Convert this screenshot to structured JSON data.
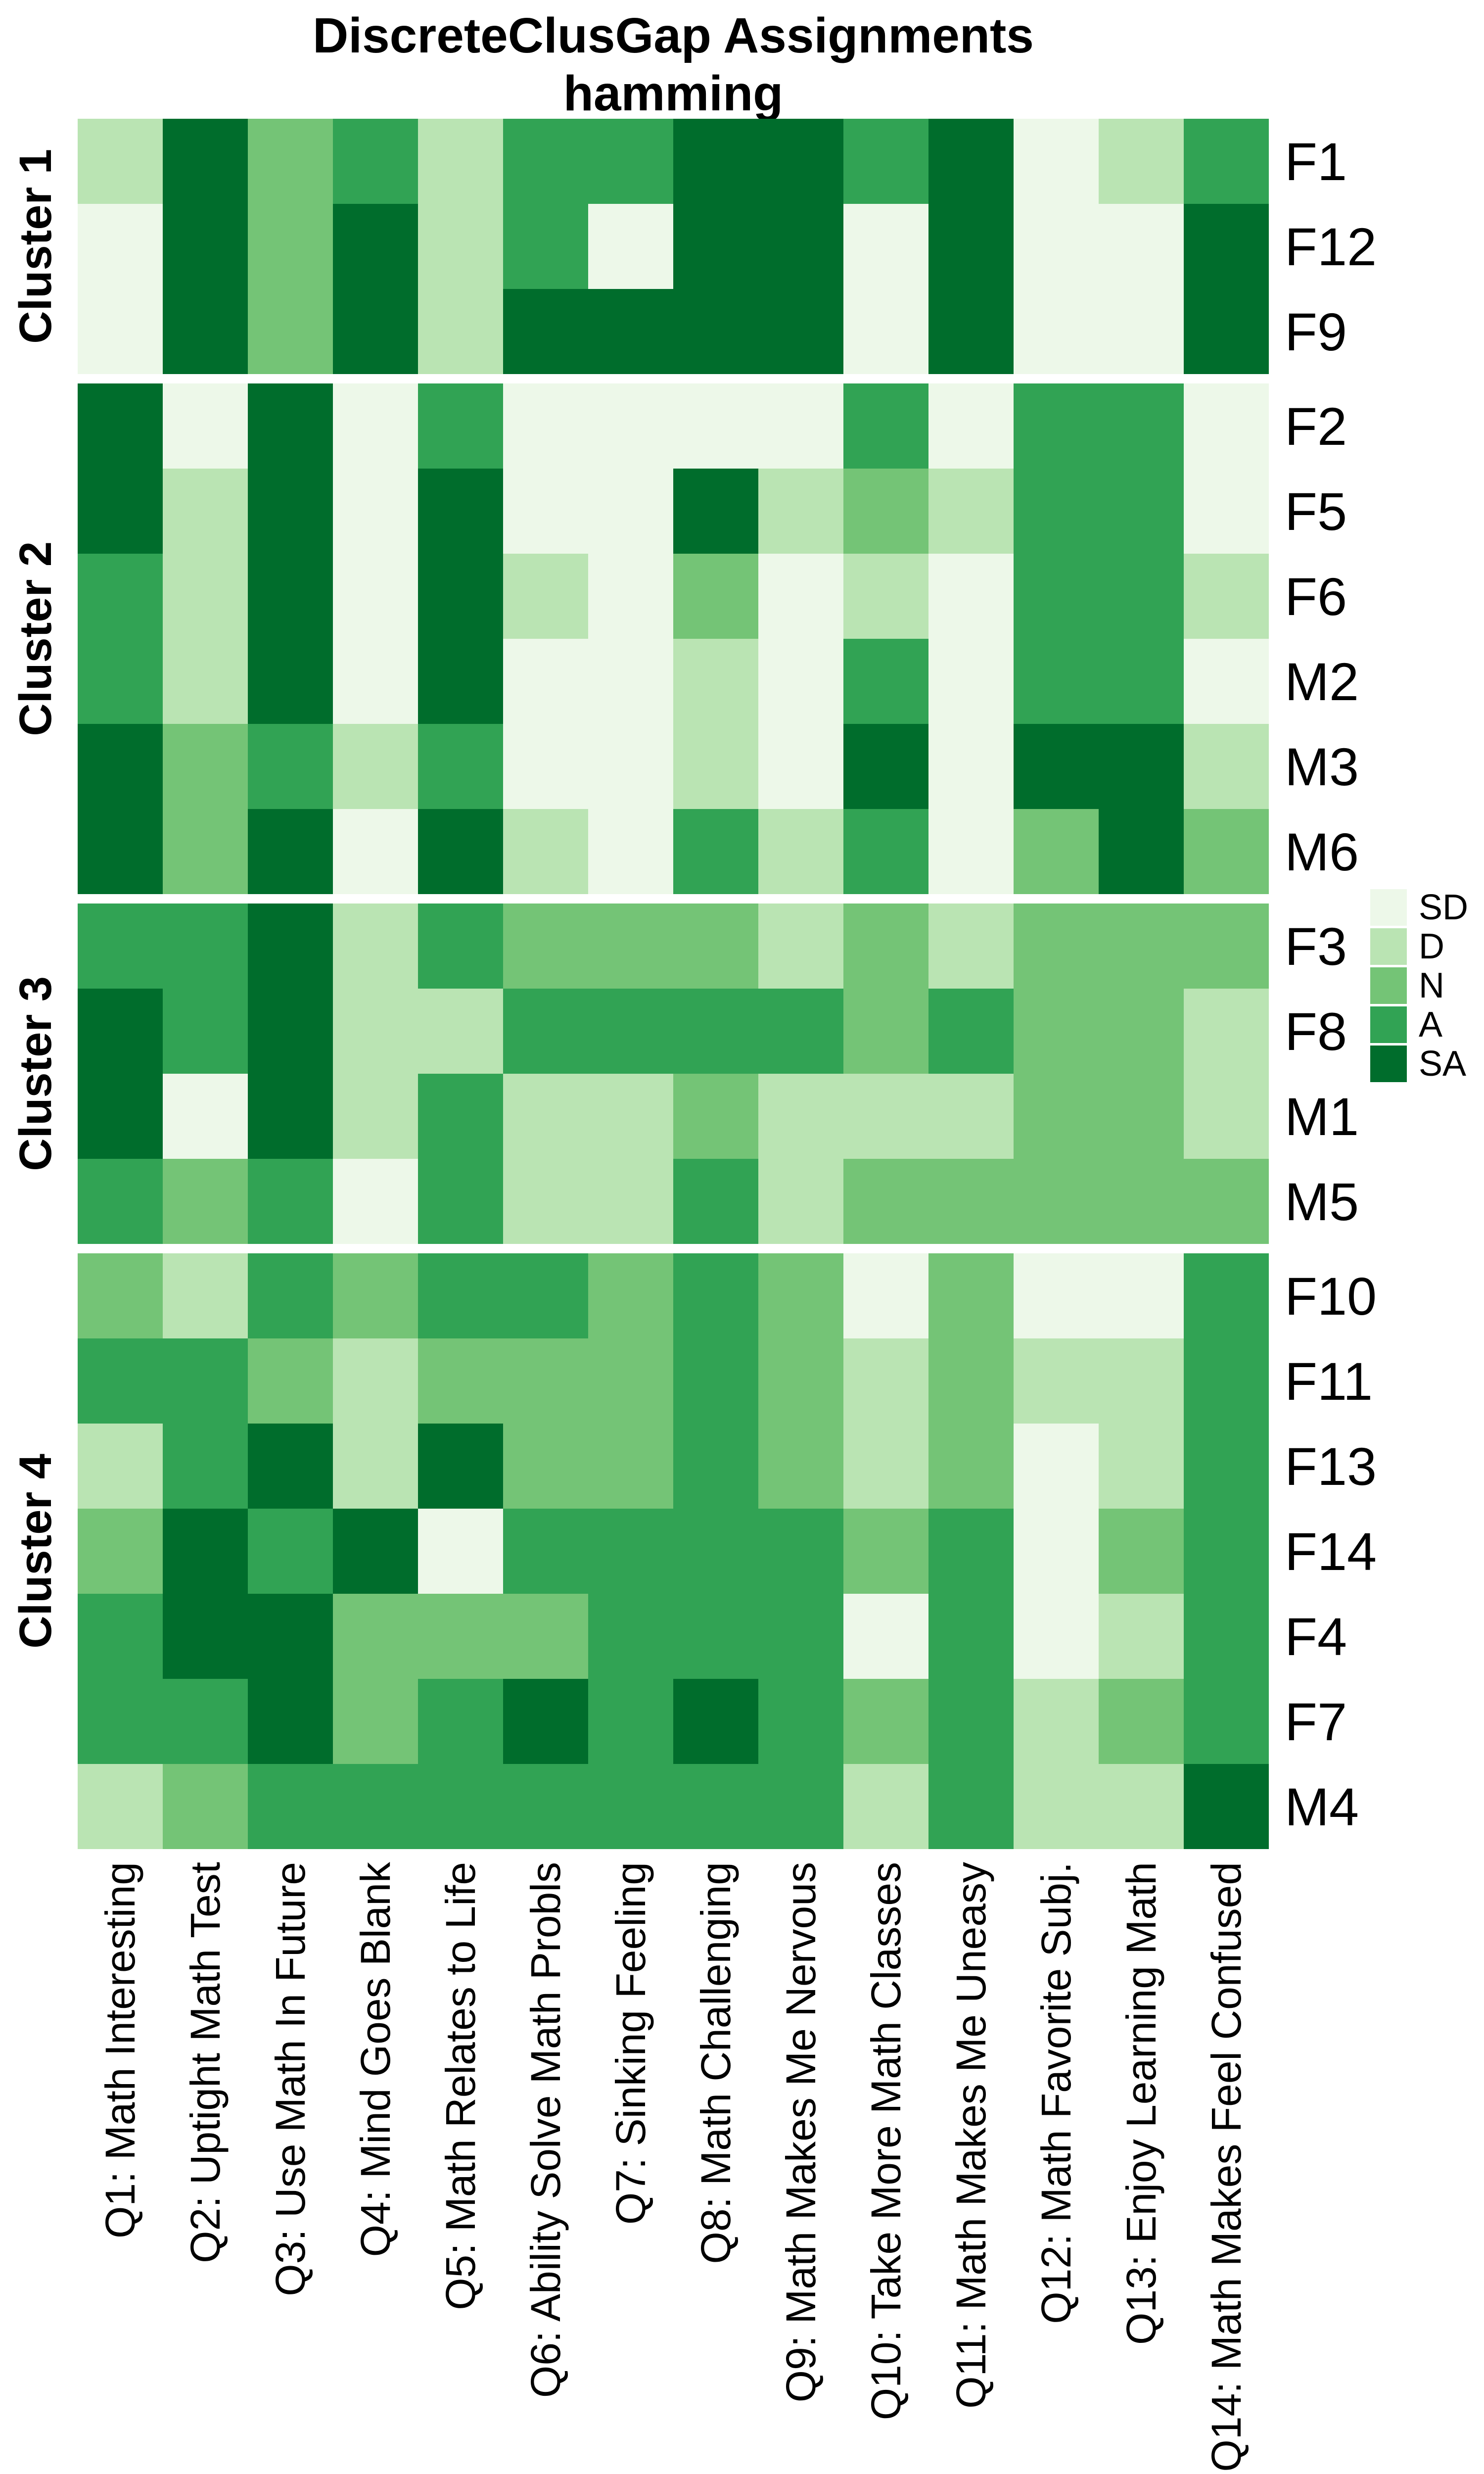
{
  "title": {
    "line1": "DiscreteClusGap Assignments",
    "line2": "hamming"
  },
  "legend": {
    "items": [
      {
        "label": "SD",
        "color": "#EDF8E9"
      },
      {
        "label": "D",
        "color": "#BAE4B3"
      },
      {
        "label": "N",
        "color": "#74C476"
      },
      {
        "label": "A",
        "color": "#31A354"
      },
      {
        "label": "SA",
        "color": "#006D2C"
      }
    ]
  },
  "chart_data": {
    "type": "heatmap",
    "title": "DiscreteClusGap Assignments",
    "subtitle": "hamming",
    "value_scale": [
      "SD",
      "D",
      "N",
      "A",
      "SA"
    ],
    "palette": {
      "SD": "#EDF8E9",
      "D": "#BAE4B3",
      "N": "#74C476",
      "A": "#31A354",
      "SA": "#006D2C"
    },
    "x_labels": [
      "Q1: Math Interesting",
      "Q2: Uptight Math Test",
      "Q3: Use Math In Future",
      "Q4: Mind Goes Blank",
      "Q5: Math Relates to Life",
      "Q6: Ability Solve Math Probls",
      "Q7: Sinking Feeling",
      "Q8: Math Challenging",
      "Q9: Math Makes Me Nervous",
      "Q10: Take More Math Classes",
      "Q11: Math Makes Me Uneasy",
      "Q12: Math Favorite Subj.",
      "Q13: Enjoy Learning Math",
      "Q14: Math Makes Feel Confused"
    ],
    "legend_position": "right",
    "clusters": [
      {
        "label": "Cluster 1",
        "rows": [
          {
            "id": "F1",
            "values": [
              "D",
              "SA",
              "N",
              "A",
              "D",
              "A",
              "A",
              "SA",
              "SA",
              "A",
              "SA",
              "SD",
              "D",
              "A"
            ]
          },
          {
            "id": "F12",
            "values": [
              "SD",
              "SA",
              "N",
              "SA",
              "D",
              "A",
              "SD",
              "SA",
              "SA",
              "SD",
              "SA",
              "SD",
              "SD",
              "SA"
            ]
          },
          {
            "id": "F9",
            "values": [
              "SD",
              "SA",
              "N",
              "SA",
              "D",
              "SA",
              "SA",
              "SA",
              "SA",
              "SD",
              "SA",
              "SD",
              "SD",
              "SA"
            ]
          }
        ]
      },
      {
        "label": "Cluster 2",
        "rows": [
          {
            "id": "F2",
            "values": [
              "SA",
              "SD",
              "SA",
              "SD",
              "A",
              "SD",
              "SD",
              "SD",
              "SD",
              "A",
              "SD",
              "A",
              "A",
              "SD"
            ]
          },
          {
            "id": "F5",
            "values": [
              "SA",
              "D",
              "SA",
              "SD",
              "SA",
              "SD",
              "SD",
              "SA",
              "D",
              "N",
              "D",
              "A",
              "A",
              "SD"
            ]
          },
          {
            "id": "F6",
            "values": [
              "A",
              "D",
              "SA",
              "SD",
              "SA",
              "D",
              "SD",
              "N",
              "SD",
              "D",
              "SD",
              "A",
              "A",
              "D"
            ]
          },
          {
            "id": "M2",
            "values": [
              "A",
              "D",
              "SA",
              "SD",
              "SA",
              "SD",
              "SD",
              "D",
              "SD",
              "A",
              "SD",
              "A",
              "A",
              "SD"
            ]
          },
          {
            "id": "M3",
            "values": [
              "SA",
              "N",
              "A",
              "D",
              "A",
              "SD",
              "SD",
              "D",
              "SD",
              "SA",
              "SD",
              "SA",
              "SA",
              "D"
            ]
          },
          {
            "id": "M6",
            "values": [
              "SA",
              "N",
              "SA",
              "SD",
              "SA",
              "D",
              "SD",
              "A",
              "D",
              "A",
              "SD",
              "N",
              "SA",
              "N"
            ]
          }
        ]
      },
      {
        "label": "Cluster 3",
        "rows": [
          {
            "id": "F3",
            "values": [
              "A",
              "A",
              "SA",
              "D",
              "A",
              "N",
              "N",
              "N",
              "D",
              "N",
              "D",
              "N",
              "N",
              "N"
            ]
          },
          {
            "id": "F8",
            "values": [
              "SA",
              "A",
              "SA",
              "D",
              "D",
              "A",
              "A",
              "A",
              "A",
              "N",
              "A",
              "N",
              "N",
              "D"
            ]
          },
          {
            "id": "M1",
            "values": [
              "SA",
              "SD",
              "SA",
              "D",
              "A",
              "D",
              "D",
              "N",
              "D",
              "D",
              "D",
              "N",
              "N",
              "D"
            ]
          },
          {
            "id": "M5",
            "values": [
              "A",
              "N",
              "A",
              "SD",
              "A",
              "D",
              "D",
              "A",
              "D",
              "N",
              "N",
              "N",
              "N",
              "N"
            ]
          }
        ]
      },
      {
        "label": "Cluster 4",
        "rows": [
          {
            "id": "F10",
            "values": [
              "N",
              "D",
              "A",
              "N",
              "A",
              "A",
              "N",
              "A",
              "N",
              "SD",
              "N",
              "SD",
              "SD",
              "A"
            ]
          },
          {
            "id": "F11",
            "values": [
              "A",
              "A",
              "N",
              "D",
              "N",
              "N",
              "N",
              "A",
              "N",
              "D",
              "N",
              "D",
              "D",
              "A"
            ]
          },
          {
            "id": "F13",
            "values": [
              "D",
              "A",
              "SA",
              "D",
              "SA",
              "N",
              "N",
              "A",
              "N",
              "D",
              "N",
              "SD",
              "D",
              "A"
            ]
          },
          {
            "id": "F14",
            "values": [
              "N",
              "SA",
              "A",
              "SA",
              "SD",
              "A",
              "A",
              "A",
              "A",
              "N",
              "A",
              "SD",
              "N",
              "A"
            ]
          },
          {
            "id": "F4",
            "values": [
              "A",
              "SA",
              "SA",
              "N",
              "N",
              "N",
              "A",
              "A",
              "A",
              "SD",
              "A",
              "SD",
              "D",
              "A"
            ]
          },
          {
            "id": "F7",
            "values": [
              "A",
              "A",
              "SA",
              "N",
              "A",
              "SA",
              "A",
              "SA",
              "A",
              "N",
              "A",
              "D",
              "N",
              "A"
            ]
          },
          {
            "id": "M4",
            "values": [
              "D",
              "N",
              "A",
              "A",
              "A",
              "A",
              "A",
              "A",
              "A",
              "D",
              "A",
              "D",
              "D",
              "SA"
            ]
          }
        ]
      }
    ]
  }
}
